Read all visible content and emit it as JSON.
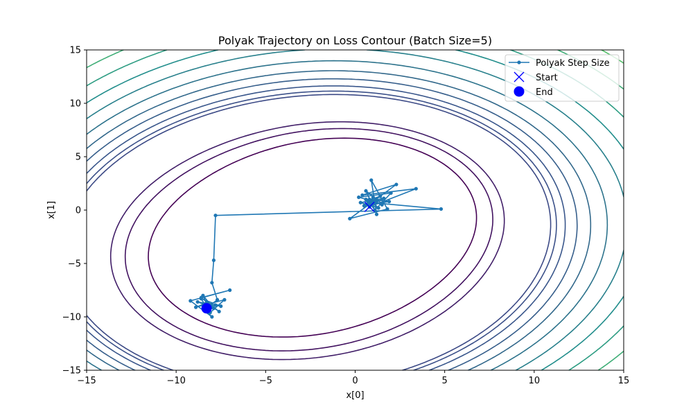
{
  "chart_data": {
    "type": "line",
    "title": "Polyak Trajectory on Loss Contour (Batch Size=5)",
    "xlabel": "x[0]",
    "ylabel": "x[1]",
    "xlim": [
      -15,
      15
    ],
    "ylim": [
      -15,
      15
    ],
    "xticks": [
      -15,
      -10,
      -5,
      0,
      5,
      10,
      15
    ],
    "yticks": [
      -15,
      -10,
      -5,
      0,
      5,
      10,
      15
    ],
    "legend_position": "top-right",
    "contour": {
      "colormap": "viridis",
      "basins": [
        {
          "center": [
            -8.3,
            -9.0
          ],
          "depth": 110,
          "width": 3.2
        },
        {
          "center": [
            0.9,
            1.0
          ],
          "depth": 55,
          "width": 1.2
        }
      ],
      "levels": [
        -0.55,
        -0.42,
        -0.33,
        0.01,
        0.05,
        0.11,
        0.19,
        0.28,
        0.39,
        0.52,
        0.66,
        0.82,
        1.0,
        1.2,
        1.42,
        1.66,
        1.92
      ]
    },
    "series": [
      {
        "name": "Polyak Step Size",
        "type": "line-marker",
        "color": "#1f77b4",
        "x": [
          0.8,
          3.4,
          0.4,
          2.3,
          -0.3,
          1.8,
          0.9,
          1.2,
          0.6,
          1.5,
          0.2,
          2.0,
          1.1,
          0.7,
          1.4,
          0.5,
          1.9,
          0.8,
          1.3,
          0.3,
          1.6,
          0.9,
          1.0,
          0.7,
          1.2,
          0.6,
          1.5,
          1.1,
          0.9,
          4.8,
          -7.8,
          -7.9,
          -8.0,
          -7.7,
          -8.4,
          -8.0,
          -9.2,
          -7.0,
          -8.6,
          -7.6,
          -8.3,
          -8.9,
          -7.3,
          -8.1,
          -8.5,
          -7.9,
          -8.8,
          -7.8,
          -8.2,
          -8.6,
          -7.5,
          -8.4,
          -8.0,
          -8.3
        ],
        "y": [
          0.3,
          2.0,
          1.4,
          2.4,
          -0.8,
          0.1,
          2.8,
          -0.4,
          1.8,
          0.6,
          1.2,
          1.6,
          0.0,
          0.9,
          1.3,
          0.4,
          0.8,
          1.0,
          0.2,
          0.7,
          1.1,
          0.5,
          1.2,
          0.6,
          0.9,
          1.0,
          0.5,
          0.8,
          0.7,
          0.1,
          -0.5,
          -4.7,
          -6.8,
          -8.4,
          -9.3,
          -10.0,
          -8.5,
          -7.5,
          -8.2,
          -9.5,
          -8.7,
          -9.1,
          -8.4,
          -9.6,
          -8.0,
          -9.2,
          -8.6,
          -8.9,
          -9.4,
          -8.3,
          -9.0,
          -8.8,
          -9.1,
          -9.2
        ]
      },
      {
        "name": "Start",
        "type": "marker-x",
        "color": "#0000ff",
        "x": [
          0.8
        ],
        "y": [
          0.3
        ]
      },
      {
        "name": "End",
        "type": "marker-circle",
        "color": "#0000ff",
        "x": [
          -8.3
        ],
        "y": [
          -9.2
        ]
      }
    ]
  }
}
